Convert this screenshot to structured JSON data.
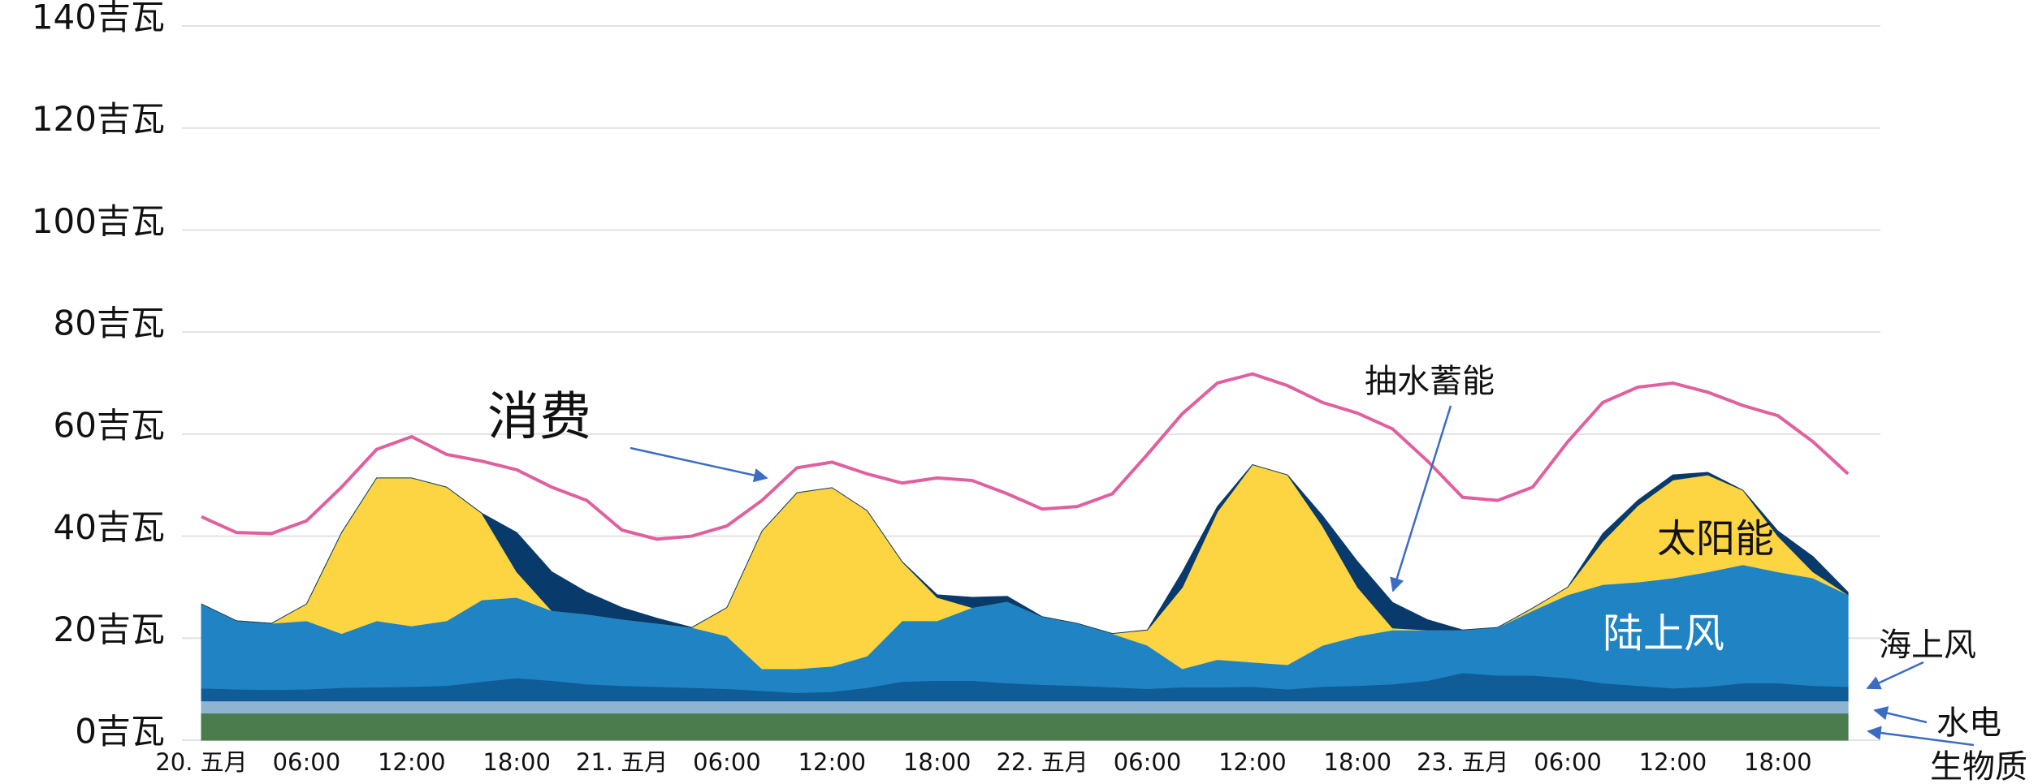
{
  "chart_data": {
    "type": "stacked_area",
    "categories": [
      "20. 五月",
      null,
      null,
      "06:00",
      null,
      null,
      "12:00",
      null,
      null,
      "18:00",
      null,
      null,
      "21. 五月",
      null,
      null,
      "06:00",
      null,
      null,
      "12:00",
      null,
      null,
      "18:00",
      null,
      null,
      "22. 五月",
      null,
      null,
      "06:00",
      null,
      null,
      "12:00",
      null,
      null,
      "18:00",
      null,
      null,
      "23. 五月",
      null,
      null,
      "06:00",
      null,
      null,
      "12:00",
      null,
      null,
      "18:00",
      null,
      null
    ],
    "series": [
      {
        "name": "生物质",
        "color": "#4a7c4e",
        "values": [
          5.3,
          5.3,
          5.3,
          5.3,
          5.3,
          5.3,
          5.3,
          5.3,
          5.3,
          5.3,
          5.3,
          5.3,
          5.3,
          5.3,
          5.3,
          5.3,
          5.3,
          5.3,
          5.3,
          5.3,
          5.3,
          5.3,
          5.3,
          5.3,
          5.3,
          5.3,
          5.3,
          5.3,
          5.3,
          5.3,
          5.3,
          5.3,
          5.3,
          5.3,
          5.3,
          5.3,
          5.3,
          5.3,
          5.3,
          5.3,
          5.3,
          5.3,
          5.3,
          5.3,
          5.3,
          5.3,
          5.3,
          5.3
        ]
      },
      {
        "name": "水电",
        "color": "#8fb3d1",
        "values": [
          2.4,
          2.4,
          2.4,
          2.4,
          2.4,
          2.4,
          2.4,
          2.4,
          2.4,
          2.4,
          2.4,
          2.4,
          2.4,
          2.4,
          2.4,
          2.4,
          2.4,
          2.4,
          2.4,
          2.4,
          2.4,
          2.4,
          2.4,
          2.4,
          2.4,
          2.4,
          2.4,
          2.4,
          2.4,
          2.4,
          2.4,
          2.4,
          2.4,
          2.4,
          2.4,
          2.4,
          2.4,
          2.4,
          2.4,
          2.4,
          2.4,
          2.4,
          2.4,
          2.4,
          2.4,
          2.4,
          2.4,
          2.4
        ]
      },
      {
        "name": "海上风",
        "color": "#0f5c96",
        "values": [
          2.5,
          2.3,
          2.2,
          2.3,
          2.6,
          2.7,
          2.8,
          3.0,
          3.8,
          4.5,
          4.0,
          3.3,
          3.0,
          2.8,
          2.6,
          2.4,
          2.0,
          1.6,
          1.8,
          2.6,
          3.8,
          4.0,
          4.0,
          3.5,
          3.2,
          3.0,
          2.7,
          2.4,
          2.7,
          2.7,
          2.8,
          2.3,
          2.8,
          3.0,
          3.3,
          4.0,
          5.5,
          5.0,
          5.0,
          4.5,
          3.5,
          3.0,
          2.5,
          2.8,
          3.5,
          3.5,
          3.0,
          2.8
        ]
      },
      {
        "name": "陆上风",
        "color": "#1f83c4",
        "values": [
          16.5,
          13.4,
          13.0,
          13.4,
          10.6,
          13.0,
          11.9,
          12.7,
          16.0,
          15.8,
          13.7,
          13.7,
          13.0,
          12.4,
          11.8,
          10.3,
          4.3,
          4.7,
          5.0,
          6.2,
          11.9,
          11.7,
          14.3,
          16.0,
          13.3,
          12.2,
          10.5,
          8.5,
          3.6,
          5.4,
          4.8,
          4.8,
          8.1,
          9.7,
          10.6,
          9.9,
          8.4,
          9.4,
          12.7,
          16.3,
          19.3,
          20.3,
          21.6,
          22.5,
          23.2,
          21.8,
          21.1,
          18.0
        ]
      },
      {
        "name": "太阳能",
        "color": "#fdd441",
        "values": [
          0,
          0,
          0,
          3.3,
          19.8,
          28,
          29,
          26.2,
          17,
          5,
          0,
          0,
          0,
          0,
          0,
          5.6,
          27,
          34.5,
          35,
          28.5,
          11.6,
          4.6,
          0,
          0,
          0,
          0,
          0,
          3,
          16,
          29,
          38.7,
          37.2,
          23.4,
          9.6,
          0.4,
          0,
          0,
          0,
          0.5,
          1.5,
          8.5,
          15,
          19.2,
          19,
          14.6,
          7,
          1.2,
          0
        ]
      },
      {
        "name": "抽水蓄能",
        "color": "#083a6b",
        "values": [
          0,
          0,
          0,
          0,
          0,
          0,
          0,
          0,
          0,
          7.7,
          7.6,
          4.3,
          2.3,
          1,
          0,
          0,
          0,
          0,
          0,
          0,
          0,
          0.5,
          2,
          1,
          0,
          0,
          0,
          0,
          3,
          1,
          0,
          0,
          2,
          5,
          5,
          2,
          0,
          0,
          0,
          0,
          1.5,
          1,
          1,
          0.5,
          0,
          1,
          3,
          0.5
        ]
      }
    ],
    "line": {
      "name": "消费",
      "color": "#e0609e",
      "values": [
        43.8,
        40.7,
        40.5,
        43,
        49.6,
        57,
        59.5,
        56,
        54.7,
        53,
        49.6,
        47,
        41.2,
        39.4,
        40,
        42,
        47,
        53.4,
        54.5,
        52.2,
        50.4,
        51.4,
        50.9,
        48.3,
        45.3,
        45.8,
        48.3,
        56,
        64,
        70,
        71.8,
        69.5,
        66.2,
        64.1,
        61,
        54.7,
        47.6,
        47,
        49.6,
        58.5,
        66.2,
        69.2,
        70,
        68.2,
        65.6,
        63.6,
        58.5,
        52.2
      ]
    },
    "ylim": [
      0,
      140
    ],
    "yticks": [
      {
        "value": 0,
        "label": "0吉瓦"
      },
      {
        "value": 20,
        "label": "20吉瓦"
      },
      {
        "value": 40,
        "label": "40吉瓦"
      },
      {
        "value": 60,
        "label": "60吉瓦"
      },
      {
        "value": 80,
        "label": "80吉瓦"
      },
      {
        "value": 100,
        "label": "100吉瓦"
      },
      {
        "value": 120,
        "label": "120吉瓦"
      },
      {
        "value": 140,
        "label": "140吉瓦"
      }
    ],
    "grid": true
  }
}
